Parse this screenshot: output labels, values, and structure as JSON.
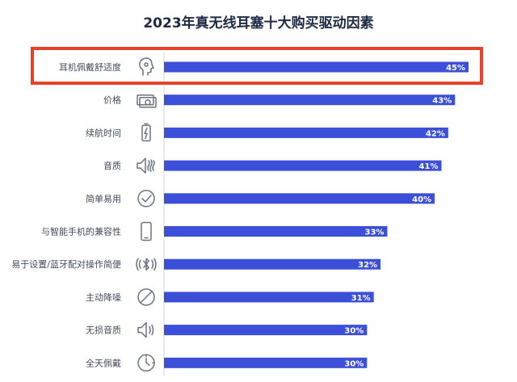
{
  "chart_data": {
    "type": "bar",
    "orientation": "horizontal",
    "title": "2023年真无线耳塞十大购买驱动因素",
    "categories": [
      "耳机佩戴舒适度",
      "价格",
      "续航时间",
      "音质",
      "简单易用",
      "与智能手机的兼容性",
      "易于设置/蓝牙配对操作简便",
      "主动降噪",
      "无损音质",
      "全天佩戴"
    ],
    "values": [
      45,
      43,
      42,
      41,
      40,
      33,
      32,
      31,
      30,
      30
    ],
    "value_labels": [
      "45%",
      "43%",
      "42%",
      "41%",
      "40%",
      "33%",
      "32%",
      "31%",
      "30%",
      "30%"
    ],
    "icons": [
      "head-profile-icon",
      "money-bills-icon",
      "battery-charging-icon",
      "speaker-sound-icon",
      "checkmark-circle-icon",
      "smartphone-icon",
      "bluetooth-signal-icon",
      "no-noise-icon",
      "speaker-lossless-icon",
      "clock-icon"
    ],
    "highlighted_category": "耳机佩戴舒适度",
    "xlim": [
      0,
      45
    ],
    "bar_color": "#3b4fd8",
    "highlight_color": "#e8432a",
    "grid": false,
    "legend": "none"
  }
}
